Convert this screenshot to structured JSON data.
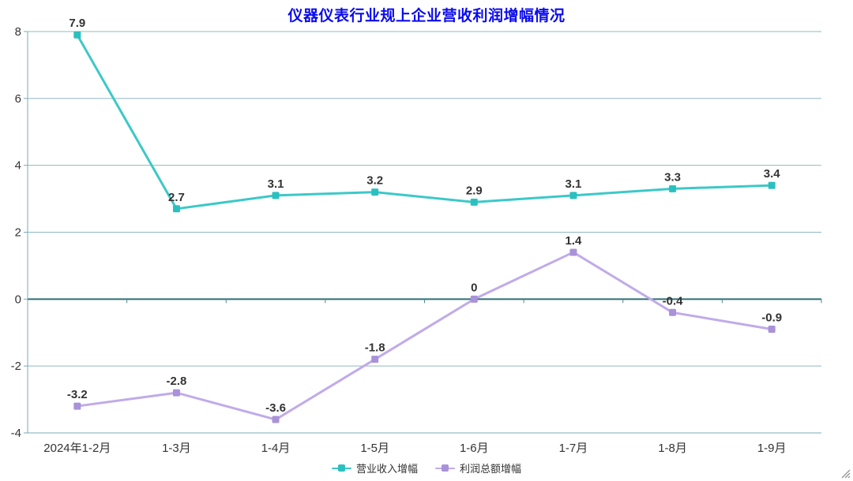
{
  "title": {
    "text": "仪器仪表行业规上企业营收利润增幅情况",
    "color": "#0a0af0"
  },
  "chart_data": {
    "type": "line",
    "categories": [
      "2024年1-2月",
      "1-3月",
      "1-4月",
      "1-5月",
      "1-6月",
      "1-7月",
      "1-8月",
      "1-9月"
    ],
    "series": [
      {
        "name": "营业收入增幅",
        "color": "#3cc8c8",
        "marker_color": "#2bc0c0",
        "values": [
          7.9,
          2.7,
          3.1,
          3.2,
          2.9,
          3.1,
          3.3,
          3.4
        ]
      },
      {
        "name": "利润总额增幅",
        "color": "#c0abe9",
        "marker_color": "#a992d9",
        "values": [
          -3.2,
          -2.8,
          -3.6,
          -1.8,
          0,
          1.4,
          -0.4,
          -0.9
        ]
      }
    ],
    "xlabel": "",
    "ylabel": "",
    "ylim": [
      -4,
      8
    ],
    "yticks": [
      8,
      6,
      4,
      2,
      0,
      -2,
      -4
    ],
    "grid": true,
    "legend_position": "bottom",
    "marker_shape": "square",
    "data_labels": true,
    "colors": {
      "zero_axis_line": "#2d6e74",
      "grid_line": "#8fb8c0",
      "axis_line": "#77abb8",
      "tick_label": "#333333",
      "data_label": "#333333"
    }
  }
}
